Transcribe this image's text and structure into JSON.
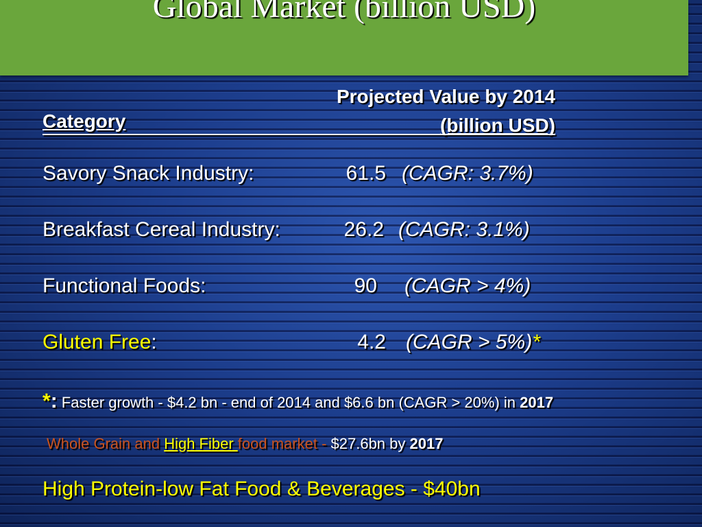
{
  "slide": {
    "title": "Global Market (billion USD)",
    "header": {
      "category": "Category",
      "projected_line1": "Projected Value by 2014",
      "projected_line2": "(billion USD)"
    },
    "rows": [
      {
        "label": "Savory Snack Industry:",
        "value": "61.5",
        "cagr": "(CAGR: 3.7%)"
      },
      {
        "label": "Breakfast Cereal Industry:",
        "value": "26.2",
        "cagr": "(CAGR: 3.1%)"
      },
      {
        "label": "Functional Foods:",
        "value": "90",
        "cagr": "(CAGR > 4%)"
      },
      {
        "label": "Gluten Free",
        "label_suffix": ":",
        "value": "4.2",
        "cagr": "(CAGR > 5%)",
        "cagr_mark": "*"
      }
    ],
    "footnote": {
      "star": "*",
      "colon": ":",
      "text": " Faster growth - $4.2 bn - end of 2014 and $6.6 bn (CAGR > 20%) in ",
      "year": "2017"
    },
    "whole_grain": {
      "part1": "Whole Grain and ",
      "part2": "High Fiber ",
      "part3": "food market - ",
      "part4": "$27.6bn by ",
      "year": "2017"
    },
    "protein_line": "High Protein-low Fat Food & Beverages - $40bn"
  }
}
